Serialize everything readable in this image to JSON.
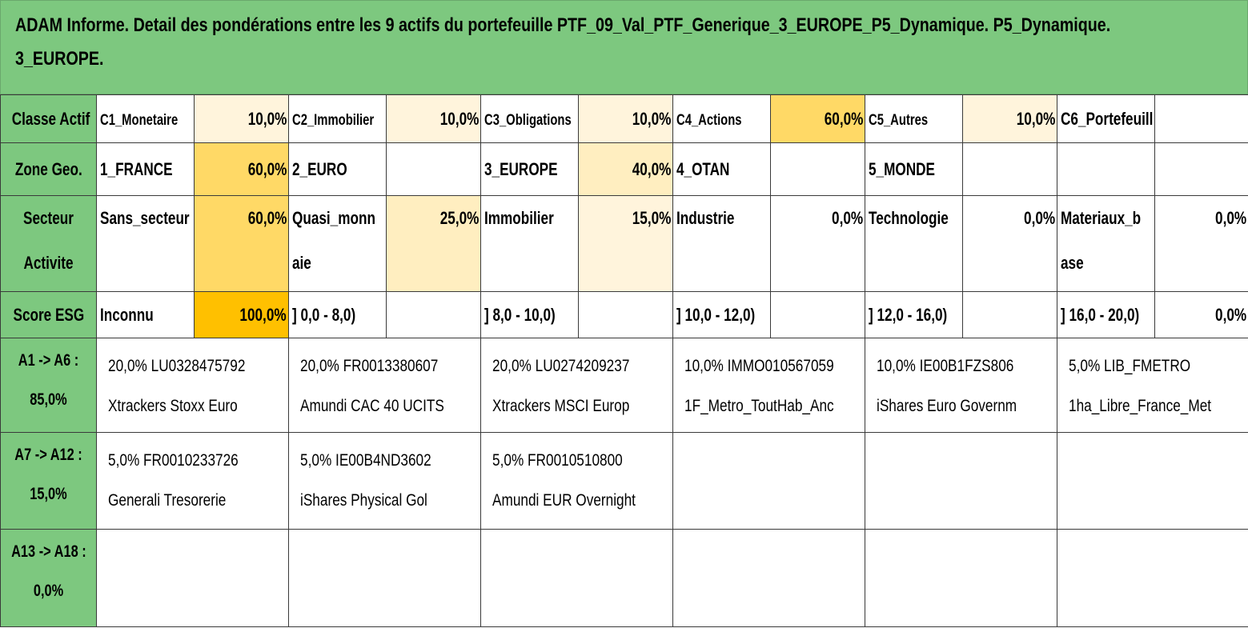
{
  "title": {
    "line1": "ADAM Informe. Detail des pondérations entre les 9 actifs du portefeuille PTF_09_Val_PTF_Generique_3_EUROPE_P5_Dynamique. P5_Dynamique.",
    "line2": "3_EUROPE."
  },
  "colors": {
    "header_green": "#7dc87f",
    "weight_full": "#ffc000",
    "weight_high": "#ffd966",
    "weight_mid": "#ffeec0",
    "weight_light": "#fff4dc"
  },
  "summary": {
    "classe_actif": {
      "label": "Classe Actif",
      "cells": [
        {
          "name": "C1_Monetaire",
          "value": "10,0%"
        },
        {
          "name": "C2_Immobilier",
          "value": "10,0%"
        },
        {
          "name": "C3_Obligations",
          "value": "10,0%"
        },
        {
          "name": "C4_Actions",
          "value": "60,0%"
        },
        {
          "name": "C5_Autres",
          "value": "10,0%"
        },
        {
          "name": "C6_Portefeuill",
          "value": ""
        }
      ]
    },
    "zone_geo": {
      "label": "Zone Geo.",
      "cells": [
        {
          "name": "1_FRANCE",
          "value": "60,0%"
        },
        {
          "name": "2_EURO",
          "value": ""
        },
        {
          "name": "3_EUROPE",
          "value": "40,0%"
        },
        {
          "name": "4_OTAN",
          "value": ""
        },
        {
          "name": "5_MONDE",
          "value": ""
        },
        {
          "name": "",
          "value": ""
        }
      ]
    },
    "secteur": {
      "label_line1": "Secteur",
      "label_line2": "Activite",
      "cells": [
        {
          "name": "Sans_secteur",
          "value": "60,0%"
        },
        {
          "name": "Quasi_monn aie",
          "value": "25,0%"
        },
        {
          "name": "Immobilier",
          "value": "15,0%"
        },
        {
          "name": "Industrie",
          "value": "0,0%"
        },
        {
          "name": "Technologie",
          "value": "0,0%"
        },
        {
          "name": "Materiaux_b ase",
          "value": "0,0%"
        }
      ]
    },
    "score_esg": {
      "label": "Score ESG",
      "cells": [
        {
          "name": "Inconnu",
          "value": "100,0%"
        },
        {
          "name": "] 0,0 - 8,0)",
          "value": ""
        },
        {
          "name": "] 8,0 - 10,0)",
          "value": ""
        },
        {
          "name": "] 10,0 - 12,0)",
          "value": ""
        },
        {
          "name": "] 12,0 - 16,0)",
          "value": ""
        },
        {
          "name": "] 16,0 - 20,0)",
          "value": "0,0%"
        }
      ]
    }
  },
  "assets": {
    "groups": [
      {
        "label_line1": "A1 -> A6 :",
        "label_line2": "85,0%",
        "items": [
          {
            "line1": "20,0% LU0328475792",
            "line2": "Xtrackers Stoxx Euro"
          },
          {
            "line1": "20,0% FR0013380607",
            "line2": "Amundi CAC 40 UCITS"
          },
          {
            "line1": "20,0% LU0274209237",
            "line2": "Xtrackers MSCI Europ"
          },
          {
            "line1": "10,0% IMMO010567059",
            "line2": "1F_Metro_ToutHab_Anc"
          },
          {
            "line1": "10,0% IE00B1FZS806",
            "line2": "iShares Euro Governm"
          },
          {
            "line1": "5,0% LIB_FMETRO",
            "line2": "1ha_Libre_France_Met"
          }
        ]
      },
      {
        "label_line1": "A7 -> A12 :",
        "label_line2": "15,0%",
        "items": [
          {
            "line1": "5,0% FR0010233726",
            "line2": "Generali Tresorerie"
          },
          {
            "line1": "5,0% IE00B4ND3602",
            "line2": "iShares Physical Gol"
          },
          {
            "line1": "5,0% FR0010510800",
            "line2": "Amundi EUR Overnight"
          },
          {
            "line1": "",
            "line2": ""
          },
          {
            "line1": "",
            "line2": ""
          },
          {
            "line1": "",
            "line2": ""
          }
        ]
      },
      {
        "label_line1": "A13 -> A18 :",
        "label_line2": "0,0%",
        "items": [
          {
            "line1": "",
            "line2": ""
          },
          {
            "line1": "",
            "line2": ""
          },
          {
            "line1": "",
            "line2": ""
          },
          {
            "line1": "",
            "line2": ""
          },
          {
            "line1": "",
            "line2": ""
          },
          {
            "line1": "",
            "line2": ""
          }
        ]
      }
    ]
  }
}
